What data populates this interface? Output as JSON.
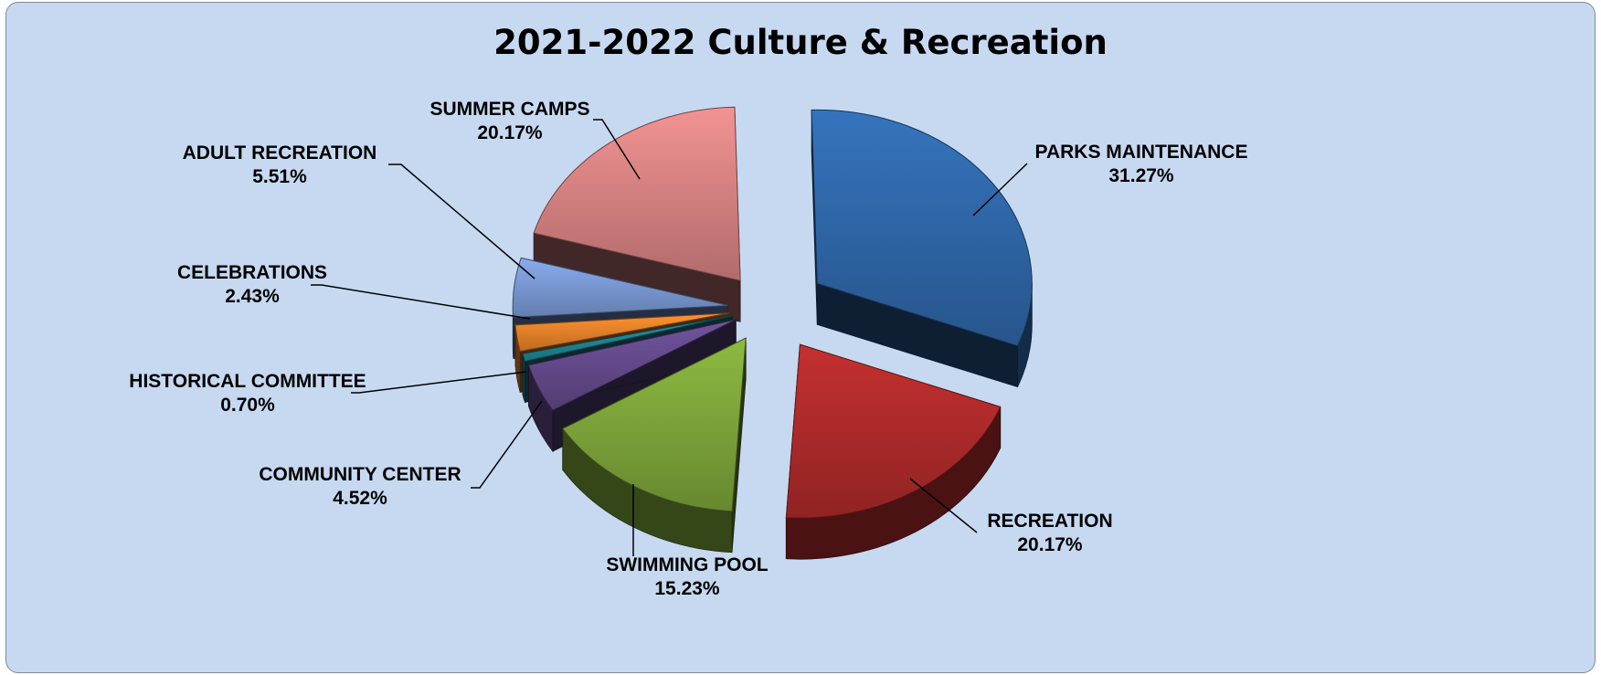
{
  "chart_data": {
    "type": "pie",
    "title": "2021-2022 Culture & Recreation",
    "slices": [
      {
        "label": "PARKS MAINTENANCE",
        "pct": "31.27%",
        "value": 31.27,
        "color": "#2f68aa"
      },
      {
        "label": "RECREATION",
        "pct": "20.17%",
        "value": 20.17,
        "color": "#b02b2b"
      },
      {
        "label": "SWIMMING POOL",
        "pct": "15.23%",
        "value": 15.23,
        "color": "#7ea63a"
      },
      {
        "label": "COMMUNITY CENTER",
        "pct": "4.52%",
        "value": 4.52,
        "color": "#654a8c"
      },
      {
        "label": "HISTORICAL COMMITTEE",
        "pct": "0.70%",
        "value": 0.7,
        "color": "#1f8a98"
      },
      {
        "label": "CELEBRATIONS",
        "pct": "2.43%",
        "value": 2.43,
        "color": "#e8832a"
      },
      {
        "label": "ADULT RECREATION",
        "pct": "5.51%",
        "value": 5.51,
        "color": "#7a9ad4"
      },
      {
        "label": "SUMMER CAMPS",
        "pct": "20.17%",
        "value": 20.17,
        "color": "#d98383"
      }
    ],
    "legend": "none",
    "style": "3d-exploded"
  }
}
